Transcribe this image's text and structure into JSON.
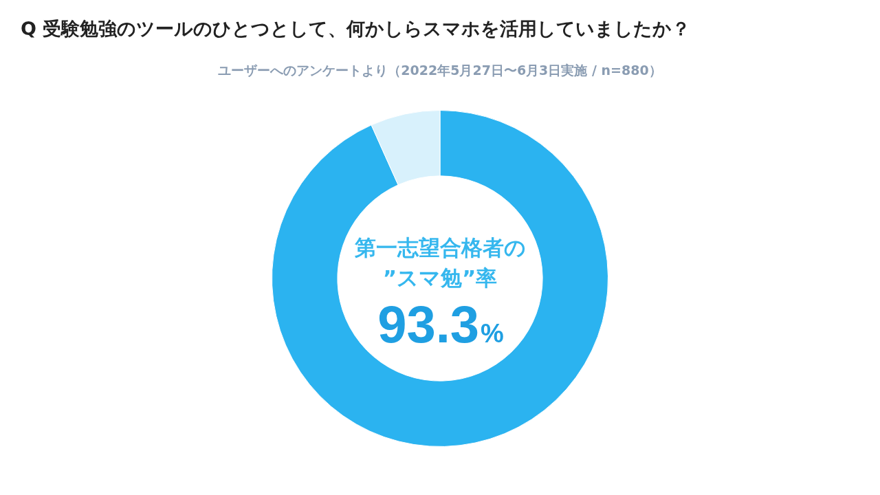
{
  "chart_data": {
    "type": "donut",
    "title": "Q 受験勉強のツールのひとつとして、何かしらスマホを活用していましたか？",
    "subtitle": "ユーザーへのアンケートより（2022年5月27日〜6月3日実施 / n=880）",
    "categories": [
      null,
      null
    ],
    "values": [
      93.3,
      6.7
    ],
    "colors": [
      "#2bb3f0",
      "#d8f1fc"
    ],
    "value_labels": [
      "93.3%",
      null
    ],
    "annotations": [
      "第一志望合格者の",
      "”スマ勉”率"
    ],
    "legend": false
  }
}
